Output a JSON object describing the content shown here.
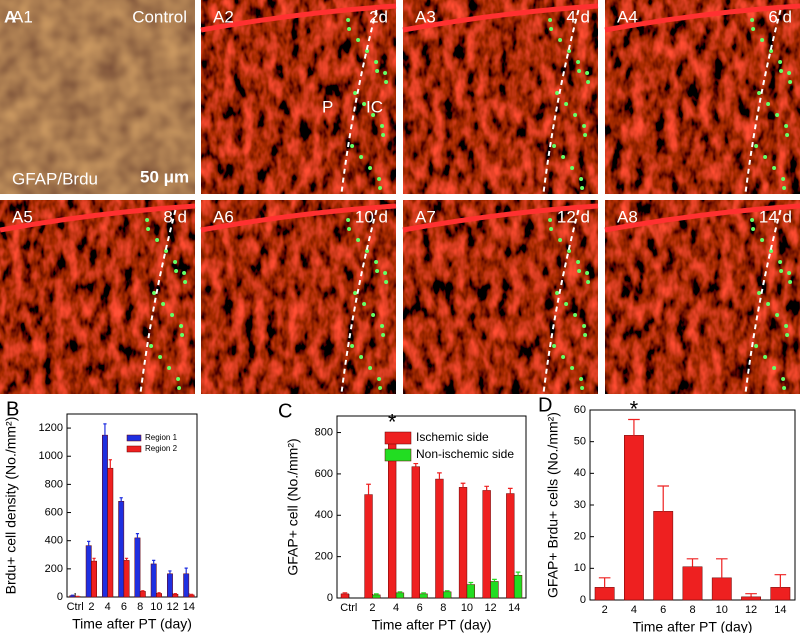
{
  "figure_label": "A",
  "panels": [
    {
      "id": "A1",
      "label": "Control"
    },
    {
      "id": "A2",
      "label": "2d"
    },
    {
      "id": "A3",
      "label": "4 d"
    },
    {
      "id": "A4",
      "label": "6 d"
    },
    {
      "id": "A5",
      "label": "8 d"
    },
    {
      "id": "A6",
      "label": "10 d"
    },
    {
      "id": "A7",
      "label": "12 d"
    },
    {
      "id": "A8",
      "label": "14 d"
    }
  ],
  "stain": "GFAP/Brdu",
  "scale_bar": "50 μm",
  "region_labels": [
    "P",
    "IC"
  ],
  "chart_data": [
    {
      "type": "bar",
      "panel_label": "B",
      "ylabel": "Brdu+ cell density (No./mm²)",
      "xlabel": "Time after PT (day)",
      "categories": [
        "Ctrl",
        "2",
        "4",
        "6",
        "8",
        "10",
        "12",
        "14"
      ],
      "series": [
        {
          "name": "Region 1",
          "color": "#1f2fe0",
          "values": [
            10,
            365,
            1150,
            680,
            420,
            235,
            165,
            165
          ],
          "errors": [
            3,
            30,
            80,
            25,
            30,
            25,
            20,
            40
          ]
        },
        {
          "name": "Region 2",
          "color": "#ee2020",
          "values": [
            3,
            255,
            915,
            260,
            40,
            25,
            20,
            15
          ],
          "errors": [
            2,
            20,
            60,
            15,
            5,
            5,
            4,
            4
          ]
        }
      ],
      "ylim": [
        0,
        1300
      ],
      "yticks": [
        0,
        200,
        400,
        600,
        800,
        1000,
        1200
      ],
      "legend": "upper right"
    },
    {
      "type": "bar",
      "panel_label": "C",
      "ylabel": "GFAP+ cell (No./mm²)",
      "xlabel": "Time after PT (day)",
      "categories": [
        "Ctrl",
        "2",
        "4",
        "6",
        "8",
        "10",
        "12",
        "14"
      ],
      "series": [
        {
          "name": "Ischemic side",
          "color": "#ee2020",
          "values": [
            20,
            500,
            785,
            635,
            575,
            535,
            520,
            505
          ],
          "errors": [
            5,
            50,
            15,
            15,
            30,
            20,
            20,
            25
          ]
        },
        {
          "name": "Non-ischemic side",
          "color": "#22dd22",
          "values": [
            null,
            15,
            25,
            20,
            30,
            65,
            80,
            110
          ],
          "errors": [
            null,
            5,
            5,
            5,
            5,
            10,
            10,
            15
          ]
        }
      ],
      "ylim": [
        0,
        880
      ],
      "yticks": [
        0,
        200,
        400,
        600,
        800
      ],
      "legend": "upper right",
      "annotations": [
        {
          "text": "*",
          "category": "4"
        }
      ]
    },
    {
      "type": "bar",
      "panel_label": "D",
      "ylabel": "GFAP+ Brdu+ cells (No./mm²)",
      "xlabel": "Time after PT (day)",
      "categories": [
        "2",
        "4",
        "6",
        "8",
        "10",
        "12",
        "14"
      ],
      "series": [
        {
          "color": "#ee2020",
          "values": [
            4,
            52,
            28,
            10.5,
            7,
            1,
            4
          ],
          "errors": [
            3,
            5,
            8,
            2.5,
            6,
            1,
            4
          ]
        }
      ],
      "ylim": [
        0,
        60
      ],
      "yticks": [
        0,
        10,
        20,
        30,
        40,
        50,
        60
      ],
      "annotations": [
        {
          "text": "*",
          "category": "4"
        }
      ]
    }
  ]
}
